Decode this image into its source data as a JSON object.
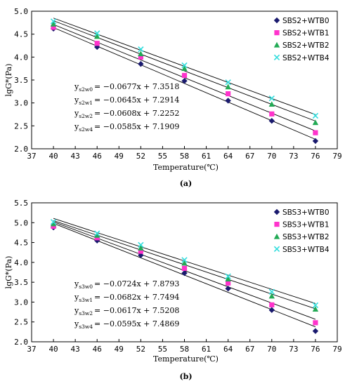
{
  "colors": {
    "WTB0": "#1a1a6e",
    "WTB1": "#ff33cc",
    "WTB2": "#22aa55",
    "WTB4": "#33dddd"
  },
  "chart_data": [
    {
      "type": "scatter",
      "panel_label": "(a)",
      "title": "",
      "xlabel": "Temperature(℃)",
      "ylabel": "lgG*(Pa)",
      "xlim": [
        37,
        79
      ],
      "ylim": [
        2.0,
        5.0
      ],
      "xticks": [
        37,
        40,
        43,
        46,
        49,
        52,
        55,
        58,
        61,
        64,
        67,
        70,
        73,
        76,
        79
      ],
      "yticks": [
        2.0,
        2.5,
        3.0,
        3.5,
        4.0,
        4.5,
        5.0
      ],
      "ytick_labels": [
        "2.0",
        "2.5",
        "3.0",
        "3.5",
        "4.0",
        "4.5",
        "5.0"
      ],
      "x": [
        40,
        46,
        52,
        58,
        64,
        70,
        76
      ],
      "legend_position": "top-right",
      "series": [
        {
          "name": "SBS2+WTB0",
          "key": "WTB0",
          "marker": "diamond",
          "values": [
            4.62,
            4.22,
            3.85,
            3.48,
            3.05,
            2.61,
            2.17
          ],
          "fit": {
            "slope": -0.0677,
            "intercept": 7.3518
          }
        },
        {
          "name": "SBS2+WTB1",
          "key": "WTB1",
          "marker": "square",
          "values": [
            4.65,
            4.3,
            4.0,
            3.6,
            3.2,
            2.76,
            2.35
          ],
          "fit": {
            "slope": -0.0645,
            "intercept": 7.2914
          }
        },
        {
          "name": "SBS2+WTB2",
          "key": "WTB2",
          "marker": "triangle",
          "values": [
            4.72,
            4.45,
            4.07,
            3.75,
            3.35,
            2.97,
            2.57
          ],
          "fit": {
            "slope": -0.0608,
            "intercept": 7.2252
          }
        },
        {
          "name": "SBS2+WTB4",
          "key": "WTB4",
          "marker": "cross",
          "values": [
            4.78,
            4.52,
            4.17,
            3.82,
            3.45,
            3.1,
            2.72
          ],
          "fit": {
            "slope": -0.0585,
            "intercept": 7.1909
          }
        }
      ],
      "equations": [
        {
          "prefix": "y",
          "sub": "s2w0",
          "rhs": "= −0.0677x + 7.3518"
        },
        {
          "prefix": "y",
          "sub": "s2w1",
          "rhs": "= −0.0645x + 7.2914"
        },
        {
          "prefix": "y",
          "sub": "s2w2",
          "rhs": "= −0.0608x + 7.2252"
        },
        {
          "prefix": "y",
          "sub": "s2w4",
          "rhs": "= −0.0585x + 7.1909"
        }
      ]
    },
    {
      "type": "scatter",
      "panel_label": "(b)",
      "title": "",
      "xlabel": "Temperature(℃)",
      "ylabel": "lgG*(Pa)",
      "xlim": [
        37,
        79
      ],
      "ylim": [
        2.0,
        5.5
      ],
      "xticks": [
        37,
        40,
        43,
        46,
        49,
        52,
        55,
        58,
        61,
        64,
        67,
        70,
        73,
        76,
        79
      ],
      "yticks": [
        2.0,
        2.5,
        3.0,
        3.5,
        4.0,
        4.5,
        5.0,
        5.5
      ],
      "ytick_labels": [
        "2.0",
        "2.5",
        "3.0",
        "3.5",
        "4.0",
        "4.5",
        "5.0",
        "5.5"
      ],
      "x": [
        40,
        46,
        52,
        58,
        64,
        70,
        76
      ],
      "legend_position": "top-right",
      "series": [
        {
          "name": "SBS3+WTB0",
          "key": "WTB0",
          "marker": "diamond",
          "values": [
            4.88,
            4.55,
            4.18,
            3.73,
            3.34,
            2.8,
            2.27
          ],
          "fit": {
            "slope": -0.0724,
            "intercept": 7.8793
          }
        },
        {
          "name": "SBS3+WTB1",
          "key": "WTB1",
          "marker": "square",
          "values": [
            4.91,
            4.62,
            4.28,
            3.85,
            3.48,
            2.93,
            2.48
          ],
          "fit": {
            "slope": -0.0682,
            "intercept": 7.7494
          }
        },
        {
          "name": "SBS3+WTB2",
          "key": "WTB2",
          "marker": "triangle",
          "values": [
            4.97,
            4.68,
            4.36,
            3.98,
            3.58,
            3.15,
            2.82
          ],
          "fit": {
            "slope": -0.0617,
            "intercept": 7.5208
          }
        },
        {
          "name": "SBS3+WTB4",
          "key": "WTB4",
          "marker": "cross",
          "values": [
            5.02,
            4.73,
            4.44,
            4.06,
            3.65,
            3.26,
            2.92
          ],
          "fit": {
            "slope": -0.0595,
            "intercept": 7.4869
          }
        }
      ],
      "equations": [
        {
          "prefix": "y",
          "sub": "s3w0",
          "rhs": "= −0.0724x + 7.8793"
        },
        {
          "prefix": "y",
          "sub": "s3w1",
          "rhs": "= −0.0682x + 7.7494"
        },
        {
          "prefix": "y",
          "sub": "s3w2",
          "rhs": "= −0.0617x + 7.5208"
        },
        {
          "prefix": "y",
          "sub": "s3w4",
          "rhs": "= −0.0595x + 7.4869"
        }
      ]
    }
  ]
}
